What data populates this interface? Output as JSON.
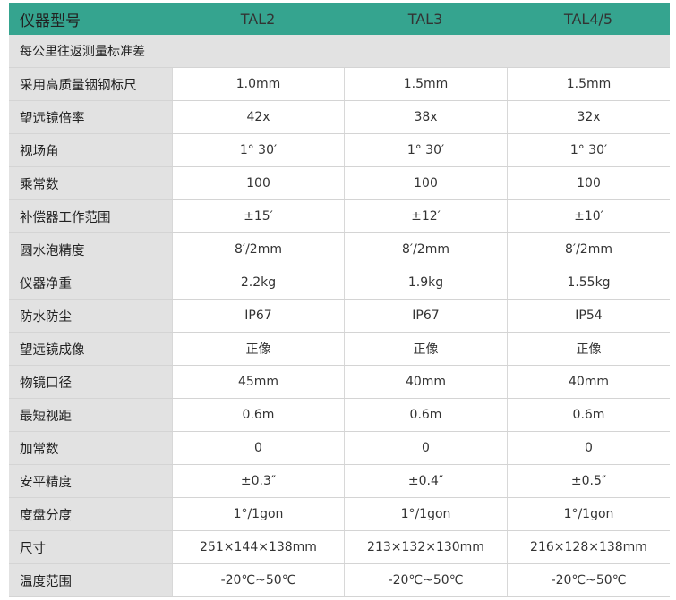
{
  "header": {
    "label": "仪器型号",
    "models": [
      "TAL2",
      "TAL3",
      "TAL4/5"
    ]
  },
  "section": "每公里往返测量标准差",
  "colors": {
    "header_bg": "#35a48f",
    "label_bg": "#e2e2e2"
  },
  "rows": [
    {
      "label": "采用高质量铟钢标尺",
      "values": [
        "1.0mm",
        "1.5mm",
        "1.5mm"
      ]
    },
    {
      "label": "望远镜倍率",
      "values": [
        "42x",
        "38x",
        "32x"
      ]
    },
    {
      "label": "视场角",
      "values": [
        "1° 30′",
        "1° 30′",
        "1° 30′"
      ]
    },
    {
      "label": "乘常数",
      "values": [
        "100",
        "100",
        "100"
      ]
    },
    {
      "label": "补偿器工作范围",
      "values": [
        "±15′",
        "±12′",
        "±10′"
      ]
    },
    {
      "label": "圆水泡精度",
      "values": [
        "8′/2mm",
        "8′/2mm",
        "8′/2mm"
      ]
    },
    {
      "label": "仪器净重",
      "values": [
        "2.2kg",
        "1.9kg",
        "1.55kg"
      ]
    },
    {
      "label": "防水防尘",
      "values": [
        "IP67",
        "IP67",
        "IP54"
      ]
    },
    {
      "label": "望远镜成像",
      "values": [
        "正像",
        "正像",
        "正像"
      ]
    },
    {
      "label": "物镜口径",
      "values": [
        "45mm",
        "40mm",
        "40mm"
      ]
    },
    {
      "label": "最短视距",
      "values": [
        "0.6m",
        "0.6m",
        "0.6m"
      ]
    },
    {
      "label": "加常数",
      "values": [
        "0",
        "0",
        "0"
      ]
    },
    {
      "label": "安平精度",
      "values": [
        "±0.3″",
        "±0.4″",
        "±0.5″"
      ]
    },
    {
      "label": "度盘分度",
      "values": [
        "1°/1gon",
        "1°/1gon",
        "1°/1gon"
      ]
    },
    {
      "label": "尺寸",
      "values": [
        "251×144×138mm",
        "213×132×130mm",
        "216×128×138mm"
      ]
    },
    {
      "label": "温度范围",
      "values": [
        "-20℃~50℃",
        "-20℃~50℃",
        "-20℃~50℃"
      ]
    }
  ]
}
